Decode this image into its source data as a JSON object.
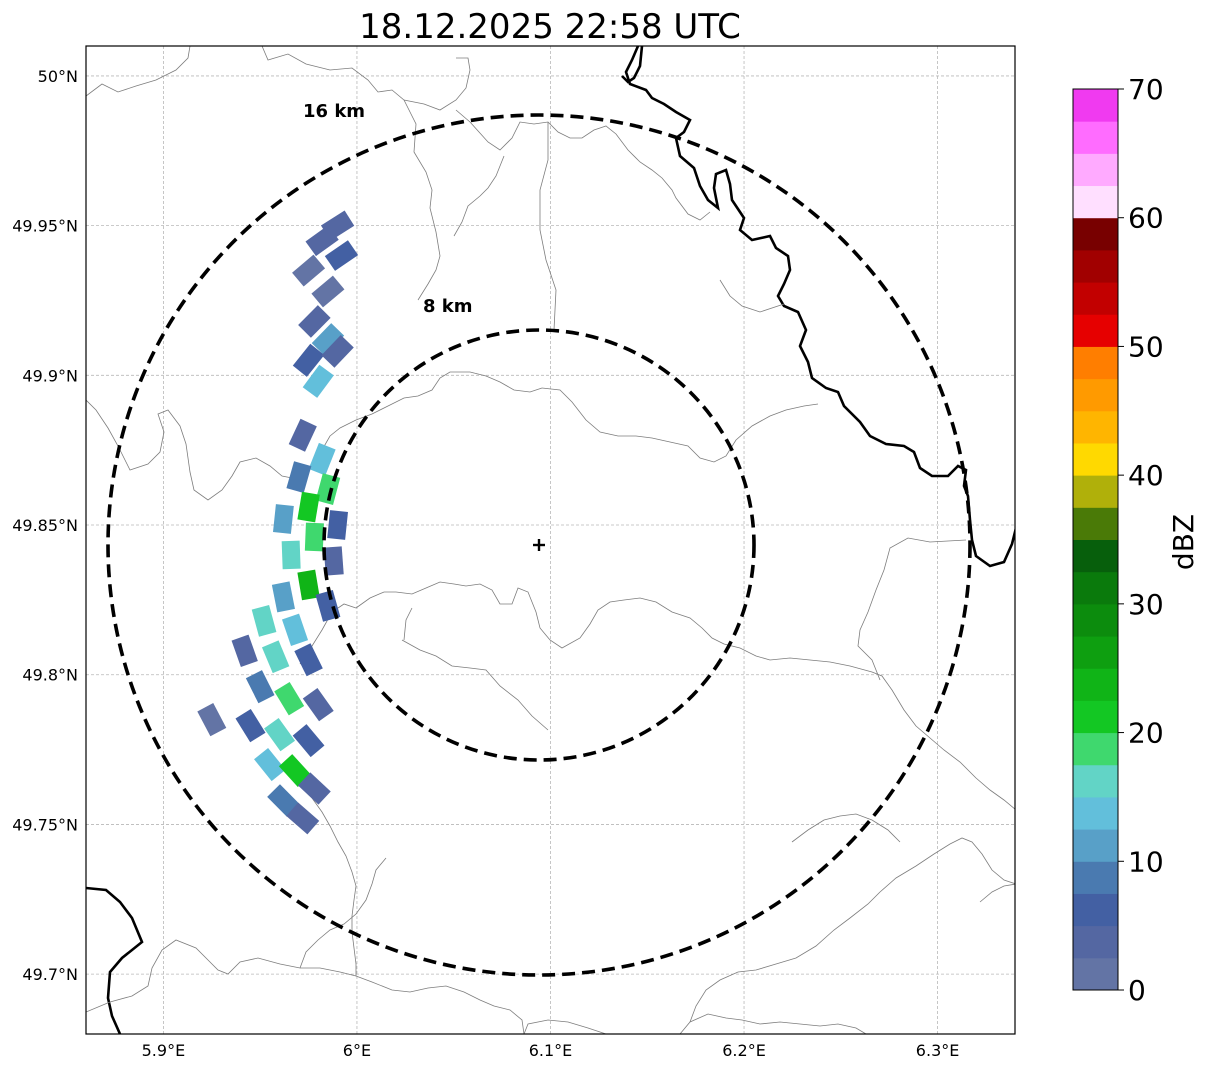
{
  "title": "18.12.2025 22:58 UTC",
  "map": {
    "lon_range": [
      5.86,
      6.34
    ],
    "lat_range": [
      49.68,
      50.01
    ],
    "lon_ticks": [
      "5.9°E",
      "6°E",
      "6.1°E",
      "6.2°E",
      "6.3°E"
    ],
    "lat_ticks": [
      "49.7°N",
      "49.75°N",
      "49.8°N",
      "49.85°N",
      "49.9°N",
      "49.95°N",
      "50°N"
    ],
    "grid": true,
    "radar_site": {
      "lon": 6.095,
      "lat": 49.843
    },
    "rings": [
      {
        "label": "16 km",
        "radius_km": 16
      },
      {
        "label": "8 km",
        "radius_km": 8
      }
    ]
  },
  "colorbar": {
    "label": "dBZ",
    "ticks": [
      "0",
      "10",
      "20",
      "30",
      "40",
      "50",
      "60",
      "70"
    ],
    "range": [
      0,
      70
    ],
    "step": 2.5,
    "colors": [
      "#6374a5",
      "#5467a2",
      "#4360a3",
      "#4a7ab0",
      "#58a0c8",
      "#62bfdb",
      "#62d4c6",
      "#3fd86e",
      "#13c723",
      "#10b417",
      "#0e9f10",
      "#0c8c0d",
      "#0a7a0c",
      "#075f0c",
      "#4a7a07",
      "#b0b00a",
      "#ffd900",
      "#ffb500",
      "#ff9a00",
      "#ff7e00",
      "#e60000",
      "#c20000",
      "#a10000",
      "#780000",
      "#ffdfff",
      "#ffaaff",
      "#ff6cff",
      "#f03af0"
    ]
  },
  "echo_cells": [
    {
      "lon": 5.982,
      "lat": 49.945,
      "dbz": 4
    },
    {
      "lon": 5.99,
      "lat": 49.95,
      "dbz": 3
    },
    {
      "lon": 5.975,
      "lat": 49.935,
      "dbz": 2
    },
    {
      "lon": 5.985,
      "lat": 49.928,
      "dbz": 1
    },
    {
      "lon": 5.992,
      "lat": 49.94,
      "dbz": 5
    },
    {
      "lon": 5.978,
      "lat": 49.918,
      "dbz": 3
    },
    {
      "lon": 5.985,
      "lat": 49.912,
      "dbz": 10
    },
    {
      "lon": 5.975,
      "lat": 49.905,
      "dbz": 6
    },
    {
      "lon": 5.98,
      "lat": 49.898,
      "dbz": 13
    },
    {
      "lon": 5.99,
      "lat": 49.908,
      "dbz": 4
    },
    {
      "lon": 5.972,
      "lat": 49.88,
      "dbz": 4
    },
    {
      "lon": 5.982,
      "lat": 49.872,
      "dbz": 14
    },
    {
      "lon": 5.97,
      "lat": 49.866,
      "dbz": 8
    },
    {
      "lon": 5.985,
      "lat": 49.862,
      "dbz": 18
    },
    {
      "lon": 5.975,
      "lat": 49.856,
      "dbz": 22
    },
    {
      "lon": 5.962,
      "lat": 49.852,
      "dbz": 10
    },
    {
      "lon": 5.99,
      "lat": 49.85,
      "dbz": 6
    },
    {
      "lon": 5.978,
      "lat": 49.846,
      "dbz": 19
    },
    {
      "lon": 5.966,
      "lat": 49.84,
      "dbz": 16
    },
    {
      "lon": 5.988,
      "lat": 49.838,
      "dbz": 3
    },
    {
      "lon": 5.975,
      "lat": 49.83,
      "dbz": 24
    },
    {
      "lon": 5.962,
      "lat": 49.826,
      "dbz": 12
    },
    {
      "lon": 5.985,
      "lat": 49.823,
      "dbz": 5
    },
    {
      "lon": 5.952,
      "lat": 49.818,
      "dbz": 17
    },
    {
      "lon": 5.968,
      "lat": 49.815,
      "dbz": 14
    },
    {
      "lon": 5.942,
      "lat": 49.808,
      "dbz": 3
    },
    {
      "lon": 5.958,
      "lat": 49.806,
      "dbz": 16
    },
    {
      "lon": 5.975,
      "lat": 49.805,
      "dbz": 7
    },
    {
      "lon": 5.95,
      "lat": 49.796,
      "dbz": 9
    },
    {
      "lon": 5.965,
      "lat": 49.792,
      "dbz": 19
    },
    {
      "lon": 5.98,
      "lat": 49.79,
      "dbz": 4
    },
    {
      "lon": 5.925,
      "lat": 49.785,
      "dbz": 2
    },
    {
      "lon": 5.945,
      "lat": 49.783,
      "dbz": 6
    },
    {
      "lon": 5.96,
      "lat": 49.78,
      "dbz": 16
    },
    {
      "lon": 5.975,
      "lat": 49.778,
      "dbz": 5
    },
    {
      "lon": 5.955,
      "lat": 49.77,
      "dbz": 13
    },
    {
      "lon": 5.968,
      "lat": 49.768,
      "dbz": 20
    },
    {
      "lon": 5.978,
      "lat": 49.762,
      "dbz": 3
    },
    {
      "lon": 5.962,
      "lat": 49.758,
      "dbz": 8
    },
    {
      "lon": 5.972,
      "lat": 49.752,
      "dbz": 4
    }
  ]
}
